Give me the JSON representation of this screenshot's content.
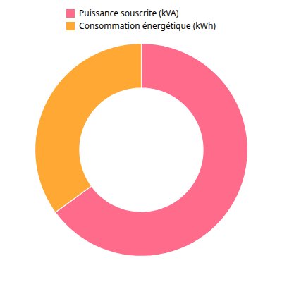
{
  "chart_data": {
    "type": "pie",
    "categories": [
      "Puissance souscrite (kVA)",
      "Consommation énergétique (kWh)"
    ],
    "values": [
      65,
      35
    ],
    "colors": [
      "#FF6B8A",
      "#FFA833"
    ],
    "legend": "top"
  }
}
